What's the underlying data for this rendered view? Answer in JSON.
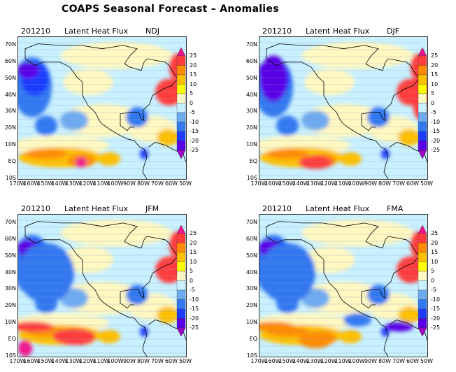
{
  "title": "COAPS Seasonal Forecast – Anomalies",
  "panels": [
    {
      "date": "201210",
      "variable": "Latent Heat Flux",
      "season": "NDJ"
    },
    {
      "date": "201210",
      "variable": "Latent Heat Flux",
      "season": "DJF"
    },
    {
      "date": "201210",
      "variable": "Latent Heat Flux",
      "season": "JFM"
    },
    {
      "date": "201210",
      "variable": "Latent Heat Flux",
      "season": "FMA"
    }
  ],
  "lat_ticks": [
    "70N",
    "60N",
    "50N",
    "40N",
    "30N",
    "20N",
    "10N",
    "EQ",
    "10S"
  ],
  "lon_ticks": [
    "170W",
    "160W",
    "150W",
    "140W",
    "130W",
    "120W",
    "110W",
    "100W",
    "90W",
    "80W",
    "70W",
    "60W",
    "50W"
  ],
  "colorbar": {
    "levels": [
      "25",
      "20",
      "15",
      "10",
      "5",
      "0",
      "-5",
      "-10",
      "-15",
      "-20",
      "-25"
    ],
    "colors": [
      "#a000c8",
      "#5a00e6",
      "#1e3cff",
      "#3278f0",
      "#6eaaf0",
      "#c8f0ff",
      "#fff8c0",
      "#ffff00",
      "#ffc000",
      "#ff8c00",
      "#ff3c3c",
      "#f0148c"
    ]
  }
}
